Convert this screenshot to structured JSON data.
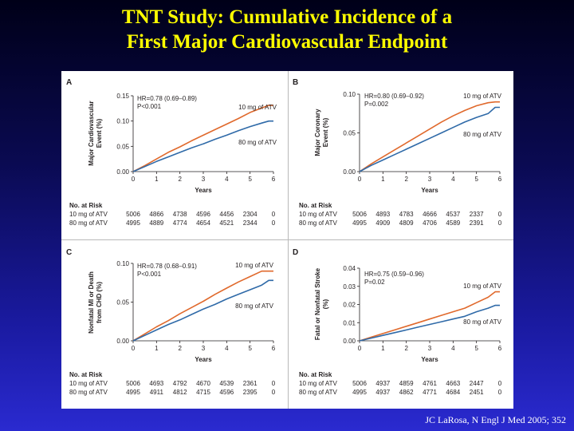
{
  "title_line1": "TNT Study: Cumulative Incidence of a",
  "title_line2": "First Major Cardiovascular Endpoint",
  "citation": "JC LaRosa, N Engl J Med 2005; 352",
  "colors": {
    "atv10": "#e0692c",
    "atv80": "#2f6aa8",
    "background_top": "#000018",
    "background_bottom": "#2a2ad0",
    "title": "#ffff00"
  },
  "chart_data": [
    {
      "type": "line",
      "panel": "A",
      "ylabel": "Major Cardiovascular Event (%)",
      "xlabel": "Years",
      "ylim": [
        0,
        0.15
      ],
      "yticks": [
        "0.00",
        "0.05",
        "0.10",
        "0.15"
      ],
      "xlim": [
        0,
        6
      ],
      "xticks": [
        "0",
        "1",
        "2",
        "3",
        "4",
        "5",
        "6"
      ],
      "hr_text": "HR=0.78 (0.69–0.89)",
      "p_text": "P<0.001",
      "series": [
        {
          "name": "10 mg of ATV",
          "x": [
            0,
            0.5,
            1,
            1.5,
            2,
            2.5,
            3,
            3.5,
            4,
            4.5,
            5,
            5.5,
            5.8,
            6
          ],
          "values": [
            0,
            0.012,
            0.025,
            0.038,
            0.049,
            0.061,
            0.072,
            0.083,
            0.094,
            0.105,
            0.117,
            0.126,
            0.131,
            0.131
          ]
        },
        {
          "name": "80 mg of ATV",
          "x": [
            0,
            0.5,
            1,
            1.5,
            2,
            2.5,
            3,
            3.5,
            4,
            4.5,
            5,
            5.5,
            5.8,
            6
          ],
          "values": [
            0,
            0.01,
            0.02,
            0.029,
            0.038,
            0.047,
            0.055,
            0.064,
            0.072,
            0.081,
            0.089,
            0.096,
            0.1,
            0.1
          ]
        }
      ],
      "risk_table": {
        "heading": "No. at Risk",
        "rows": [
          {
            "label": "10 mg of ATV",
            "values": [
              "5006",
              "4866",
              "4738",
              "4596",
              "4456",
              "2304",
              "0"
            ]
          },
          {
            "label": "80 mg of ATV",
            "values": [
              "4995",
              "4889",
              "4774",
              "4654",
              "4521",
              "2344",
              "0"
            ]
          }
        ]
      }
    },
    {
      "type": "line",
      "panel": "B",
      "ylabel": "Major Coronary Event (%)",
      "xlabel": "Years",
      "ylim": [
        0,
        0.1
      ],
      "yticks": [
        "0.00",
        "0.05",
        "0.10"
      ],
      "xlim": [
        0,
        6
      ],
      "xticks": [
        "0",
        "1",
        "2",
        "3",
        "4",
        "5",
        "6"
      ],
      "hr_text": "HR=0.80 (0.69–0.92)",
      "p_text": "P=0.002",
      "series": [
        {
          "name": "10 mg of ATV",
          "x": [
            0,
            0.5,
            1,
            1.5,
            2,
            2.5,
            3,
            3.5,
            4,
            4.5,
            5,
            5.5,
            5.8,
            6
          ],
          "values": [
            0,
            0.01,
            0.019,
            0.028,
            0.037,
            0.046,
            0.055,
            0.064,
            0.072,
            0.079,
            0.085,
            0.089,
            0.09,
            0.09
          ]
        },
        {
          "name": "80 mg of ATV",
          "x": [
            0,
            0.5,
            1,
            1.5,
            2,
            2.5,
            3,
            3.5,
            4,
            4.5,
            5,
            5.5,
            5.8,
            6
          ],
          "values": [
            0,
            0.008,
            0.015,
            0.022,
            0.029,
            0.036,
            0.043,
            0.05,
            0.057,
            0.064,
            0.07,
            0.075,
            0.083,
            0.083
          ]
        }
      ],
      "risk_table": {
        "heading": "No. at Risk",
        "rows": [
          {
            "label": "10 mg of ATV",
            "values": [
              "5006",
              "4893",
              "4783",
              "4666",
              "4537",
              "2337",
              "0"
            ]
          },
          {
            "label": "80 mg of ATV",
            "values": [
              "4995",
              "4909",
              "4809",
              "4706",
              "4589",
              "2391",
              "0"
            ]
          }
        ]
      }
    },
    {
      "type": "line",
      "panel": "C",
      "ylabel": "Nonfatal MI or Death from CHD (%)",
      "xlabel": "Years",
      "ylim": [
        0,
        0.1
      ],
      "yticks": [
        "0.00",
        "0.05",
        "0.10"
      ],
      "xlim": [
        0,
        6
      ],
      "xticks": [
        "0",
        "1",
        "2",
        "3",
        "4",
        "5",
        "6"
      ],
      "hr_text": "HR=0.78 (0.68–0.91)",
      "p_text": "P<0.001",
      "series": [
        {
          "name": "10 mg of ATV",
          "x": [
            0,
            0.5,
            1,
            1.5,
            2,
            2.5,
            3,
            3.5,
            4,
            4.5,
            5,
            5.5,
            5.8,
            6
          ],
          "values": [
            0,
            0.009,
            0.018,
            0.026,
            0.035,
            0.043,
            0.051,
            0.06,
            0.068,
            0.076,
            0.083,
            0.09,
            0.09,
            0.09
          ]
        },
        {
          "name": "80 mg of ATV",
          "x": [
            0,
            0.5,
            1,
            1.5,
            2,
            2.5,
            3,
            3.5,
            4,
            4.5,
            5,
            5.5,
            5.8,
            6
          ],
          "values": [
            0,
            0.007,
            0.014,
            0.021,
            0.027,
            0.034,
            0.041,
            0.047,
            0.054,
            0.06,
            0.066,
            0.072,
            0.078,
            0.078
          ]
        }
      ],
      "risk_table": {
        "heading": "No. at Risk",
        "rows": [
          {
            "label": "10 mg of ATV",
            "values": [
              "5006",
              "4693",
              "4792",
              "4670",
              "4539",
              "2361",
              "0"
            ]
          },
          {
            "label": "80 mg of ATV",
            "values": [
              "4995",
              "4911",
              "4812",
              "4715",
              "4596",
              "2395",
              "0"
            ]
          }
        ]
      }
    },
    {
      "type": "line",
      "panel": "D",
      "ylabel": "Fatal or Nonfatal Stroke (%)",
      "xlabel": "Years",
      "ylim": [
        0,
        0.04
      ],
      "yticks": [
        "0.00",
        "0.01",
        "0.02",
        "0.03",
        "0.04"
      ],
      "xlim": [
        0,
        6
      ],
      "xticks": [
        "0",
        "1",
        "2",
        "3",
        "4",
        "5",
        "6"
      ],
      "hr_text": "HR=0.75 (0.59–0.96)",
      "p_text": "P=0.02",
      "series": [
        {
          "name": "10 mg of ATV",
          "x": [
            0,
            0.5,
            1,
            1.5,
            2,
            2.5,
            3,
            3.5,
            4,
            4.5,
            5,
            5.5,
            5.8,
            6
          ],
          "values": [
            0,
            0.002,
            0.004,
            0.006,
            0.008,
            0.01,
            0.012,
            0.014,
            0.016,
            0.018,
            0.021,
            0.024,
            0.027,
            0.027
          ]
        },
        {
          "name": "80 mg of ATV",
          "x": [
            0,
            0.5,
            1,
            1.5,
            2,
            2.5,
            3,
            3.5,
            4,
            4.5,
            5,
            5.5,
            5.8,
            6
          ],
          "values": [
            0,
            0.0015,
            0.003,
            0.0045,
            0.006,
            0.0075,
            0.009,
            0.0105,
            0.012,
            0.0135,
            0.016,
            0.018,
            0.0195,
            0.0195
          ]
        }
      ],
      "risk_table": {
        "heading": "No. at Risk",
        "rows": [
          {
            "label": "10 mg of ATV",
            "values": [
              "5006",
              "4937",
              "4859",
              "4761",
              "4663",
              "2447",
              "0"
            ]
          },
          {
            "label": "80 mg of ATV",
            "values": [
              "4995",
              "4937",
              "4862",
              "4771",
              "4684",
              "2451",
              "0"
            ]
          }
        ]
      }
    }
  ]
}
